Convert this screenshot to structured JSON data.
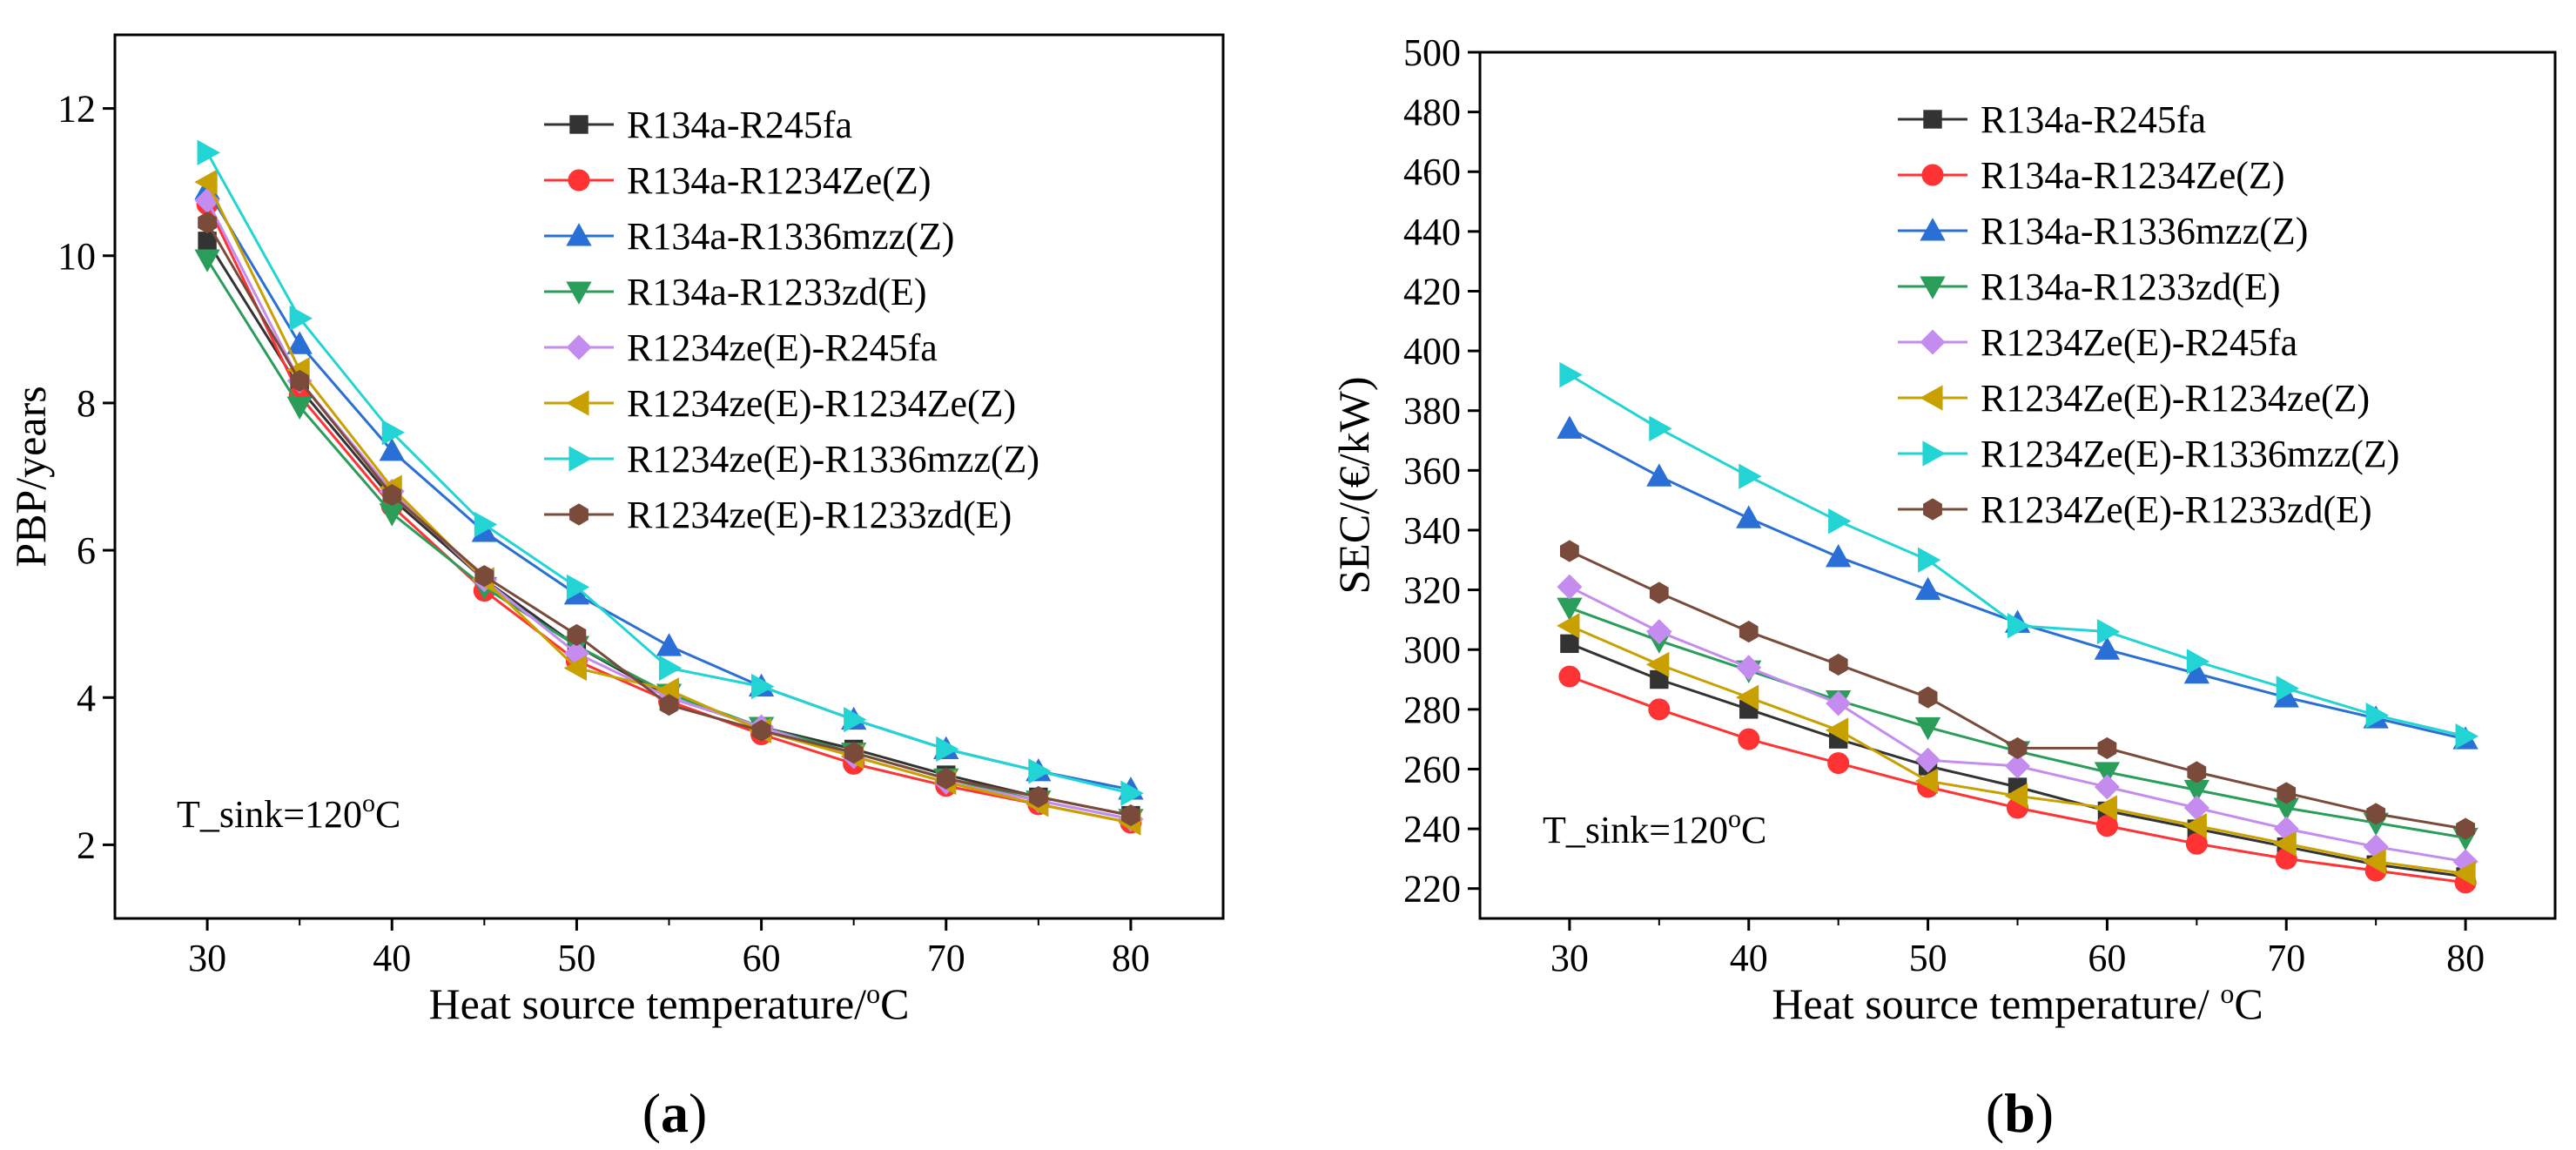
{
  "chart_data": [
    {
      "type": "line",
      "panel_label": "a",
      "xlabel": "Heat source temperature/",
      "xlabel_unit": "oC",
      "ylabel": "PBP/years",
      "xlim": [
        25,
        85
      ],
      "ylim": [
        1,
        13
      ],
      "xticks": [
        30,
        40,
        50,
        60,
        70,
        80
      ],
      "yticks": [
        2,
        4,
        6,
        8,
        10,
        12
      ],
      "annotation": "T_sink=120",
      "annotation_unit": "oC",
      "legend_position": "top-right",
      "x": [
        30,
        35,
        40,
        45,
        50,
        55,
        60,
        65,
        70,
        75,
        80
      ],
      "series": [
        {
          "name": "R134a-R245fa",
          "marker": "square",
          "color": "#333333",
          "values": [
            10.2,
            8.2,
            6.7,
            5.6,
            4.7,
            4.0,
            3.6,
            3.3,
            2.95,
            2.65,
            2.4
          ]
        },
        {
          "name": "R134a-R1234Ze(Z)",
          "marker": "circle",
          "color": "#ff3333",
          "values": [
            10.7,
            8.1,
            6.6,
            5.45,
            4.5,
            3.95,
            3.5,
            3.1,
            2.8,
            2.55,
            2.3
          ]
        },
        {
          "name": "R134a-R1336mzz(Z)",
          "marker": "triangle-up",
          "color": "#2a6fd6",
          "values": [
            10.9,
            8.8,
            7.35,
            6.25,
            5.4,
            4.7,
            4.15,
            3.7,
            3.3,
            3.0,
            2.75
          ]
        },
        {
          "name": "R134a-R1233zd(E)",
          "marker": "triangle-down",
          "color": "#2a9d5a",
          "values": [
            9.95,
            7.95,
            6.5,
            5.5,
            4.7,
            4.05,
            3.6,
            3.25,
            2.9,
            2.6,
            2.35
          ]
        },
        {
          "name": "R1234ze(E)-R245fa",
          "marker": "diamond",
          "color": "#c58cf0",
          "values": [
            10.75,
            8.3,
            6.8,
            5.6,
            4.6,
            4.0,
            3.6,
            3.2,
            2.85,
            2.6,
            2.35
          ]
        },
        {
          "name": "R1234ze(E)-R1234Ze(Z)",
          "marker": "triangle-left",
          "color": "#c8a000",
          "values": [
            11.0,
            8.45,
            6.85,
            5.6,
            4.4,
            4.1,
            3.55,
            3.2,
            2.85,
            2.55,
            2.3
          ]
        },
        {
          "name": "R1234ze(E)-R1336mzz(Z)",
          "marker": "triangle-right",
          "color": "#22d4d4",
          "values": [
            11.4,
            9.15,
            7.6,
            6.35,
            5.5,
            4.4,
            4.15,
            3.7,
            3.3,
            3.0,
            2.7
          ]
        },
        {
          "name": "R1234ze(E)-R1233zd(E)",
          "marker": "hexagon",
          "color": "#7a4a3a",
          "values": [
            10.45,
            8.3,
            6.75,
            5.65,
            4.85,
            3.9,
            3.55,
            3.25,
            2.9,
            2.65,
            2.4
          ]
        }
      ]
    },
    {
      "type": "line",
      "panel_label": "b",
      "xlabel": "Heat source temperature/ ",
      "xlabel_unit": "oC",
      "ylabel": "SEC/(€/kW)",
      "xlim": [
        25,
        85
      ],
      "ylim": [
        210,
        500
      ],
      "xticks": [
        30,
        40,
        50,
        60,
        70,
        80
      ],
      "yticks": [
        220,
        240,
        260,
        280,
        300,
        320,
        340,
        360,
        380,
        400,
        420,
        440,
        460,
        480,
        500
      ],
      "annotation": "T_sink=120",
      "annotation_unit": "oC",
      "legend_position": "top-right",
      "x": [
        30,
        35,
        40,
        45,
        50,
        55,
        60,
        65,
        70,
        75,
        80
      ],
      "series": [
        {
          "name": "R134a-R245fa",
          "marker": "square",
          "color": "#333333",
          "values": [
            302,
            290,
            280,
            270,
            261,
            254,
            246,
            240,
            234,
            228,
            224
          ]
        },
        {
          "name": "R134a-R1234Ze(Z)",
          "marker": "circle",
          "color": "#ff3333",
          "values": [
            291,
            280,
            270,
            262,
            254,
            247,
            241,
            235,
            230,
            226,
            222
          ]
        },
        {
          "name": "R134a-R1336mzz(Z)",
          "marker": "triangle-up",
          "color": "#2a6fd6",
          "values": [
            374,
            358,
            344,
            331,
            320,
            309,
            300,
            292,
            284,
            277,
            270
          ]
        },
        {
          "name": "R134a-R1233zd(E)",
          "marker": "triangle-down",
          "color": "#2a9d5a",
          "values": [
            314,
            303,
            293,
            283,
            274,
            266,
            259,
            253,
            247,
            242,
            237
          ]
        },
        {
          "name": "R1234Ze(E)-R245fa",
          "marker": "diamond",
          "color": "#c58cf0",
          "values": [
            321,
            306,
            294,
            282,
            263,
            261,
            254,
            247,
            240,
            234,
            229
          ]
        },
        {
          "name": "R1234Ze(E)-R1234ze(Z)",
          "marker": "triangle-left",
          "color": "#c8a000",
          "values": [
            308,
            295,
            284,
            273,
            256,
            251,
            247,
            241,
            235,
            229,
            225
          ]
        },
        {
          "name": "R1234Ze(E)-R1336mzz(Z)",
          "marker": "triangle-right",
          "color": "#22d4d4",
          "values": [
            392,
            374,
            358,
            343,
            330,
            308,
            306,
            296,
            287,
            278,
            271
          ]
        },
        {
          "name": "R1234Ze(E)-R1233zd(E)",
          "marker": "hexagon",
          "color": "#7a4a3a",
          "values": [
            333,
            319,
            306,
            295,
            284,
            267,
            267,
            259,
            252,
            245,
            240
          ]
        }
      ]
    }
  ]
}
